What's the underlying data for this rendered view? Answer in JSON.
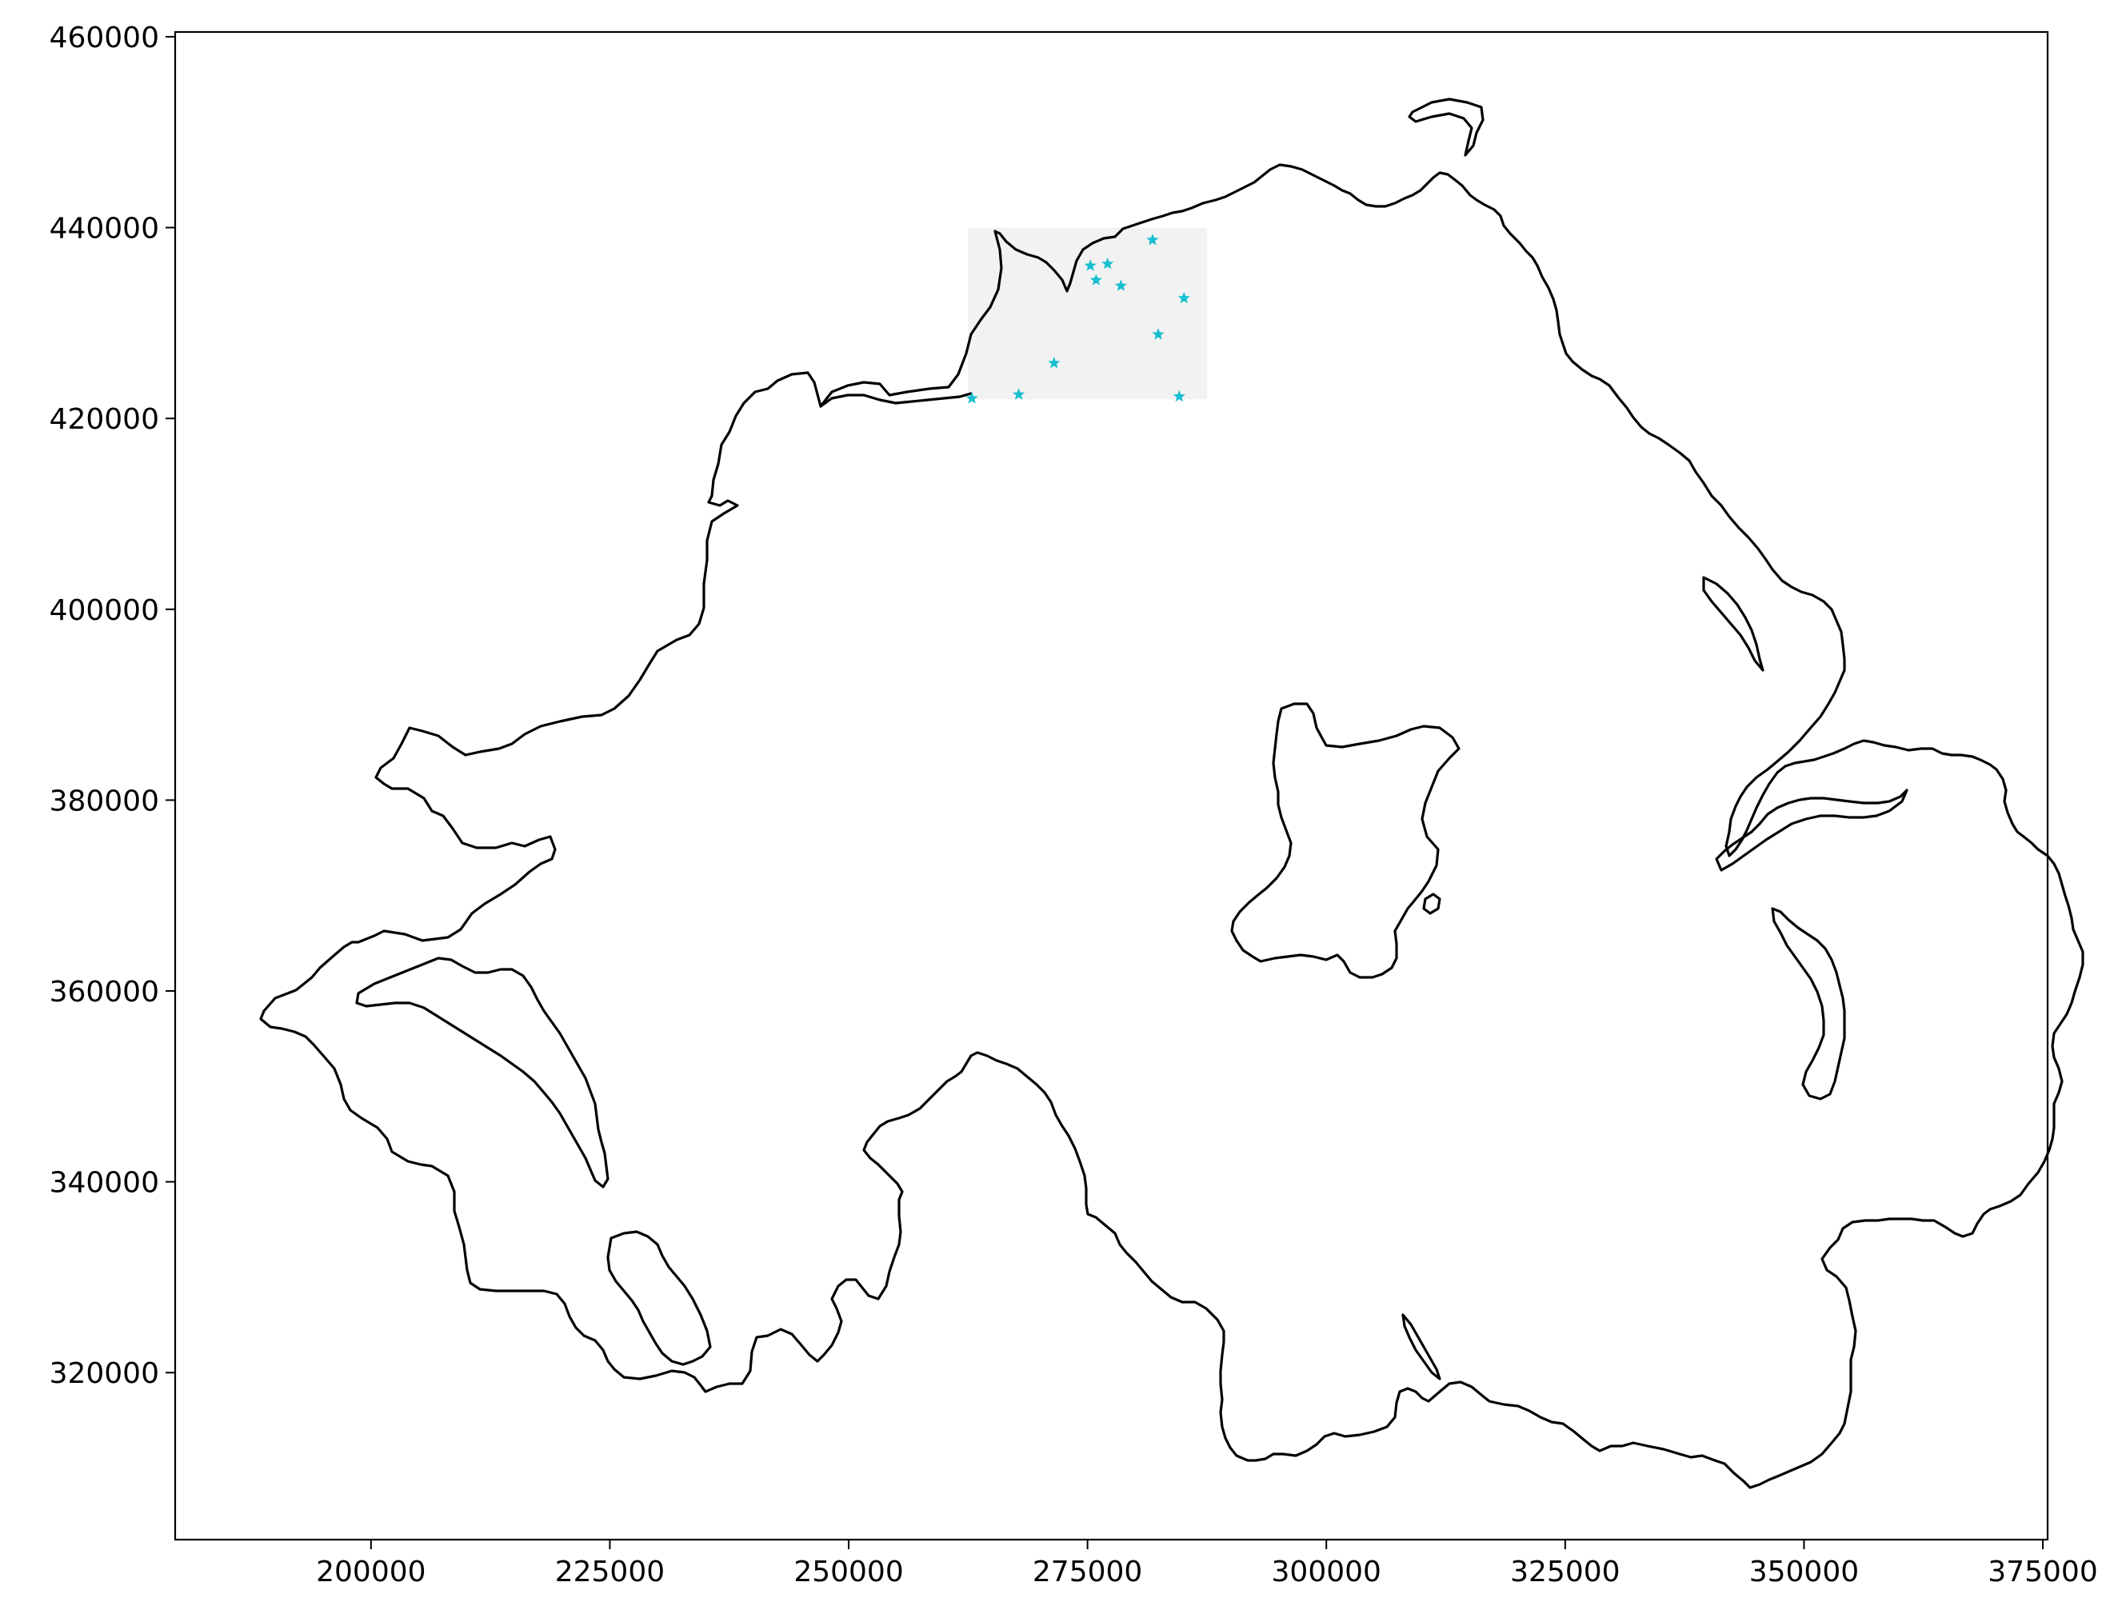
{
  "chart_data": {
    "type": "scatter",
    "title": "",
    "xlabel": "",
    "ylabel": "",
    "xlim": [
      179500,
      375500
    ],
    "ylim": [
      302500,
      460500
    ],
    "xticks": [
      200000,
      225000,
      250000,
      275000,
      300000,
      325000,
      350000,
      375000
    ],
    "yticks": [
      320000,
      340000,
      360000,
      380000,
      400000,
      420000,
      440000,
      460000
    ],
    "grid": false,
    "legend": "none",
    "highlight_region": {
      "x": [
        262500,
        287500
      ],
      "y": [
        422000,
        440000
      ],
      "color": "#f2f2f2"
    },
    "series": [
      {
        "marker": "star",
        "color": "#17becf",
        "points": [
          {
            "x": 262900,
            "y": 422100
          },
          {
            "x": 267800,
            "y": 422500
          },
          {
            "x": 271500,
            "y": 425800
          },
          {
            "x": 275300,
            "y": 436000
          },
          {
            "x": 275900,
            "y": 434500
          },
          {
            "x": 277100,
            "y": 436200
          },
          {
            "x": 278500,
            "y": 433900
          },
          {
            "x": 281800,
            "y": 438700
          },
          {
            "x": 282400,
            "y": 428800
          },
          {
            "x": 284600,
            "y": 422300
          },
          {
            "x": 285100,
            "y": 432600
          }
        ]
      }
    ]
  }
}
